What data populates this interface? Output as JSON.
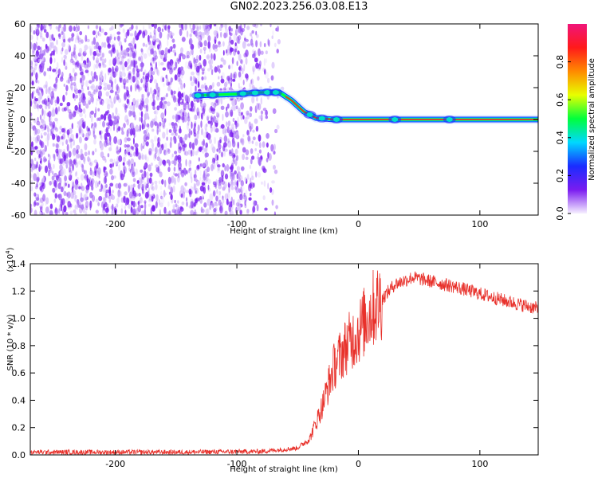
{
  "title": "GN02.2023.256.03.08.E13",
  "colors": {
    "signal": "#e8312b",
    "noise": "#7a1cf0",
    "axis": "#000000"
  },
  "chart_data": [
    {
      "type": "heatmap",
      "xlabel": "Height of straight line (km)",
      "ylabel": "Frequency (Hz)",
      "xlim": [
        -270,
        148
      ],
      "ylim": [
        -60,
        60
      ],
      "xticks": [
        -200,
        -100,
        0,
        100
      ],
      "xtick_labels": [
        "-200",
        "-100",
        "0",
        "100"
      ],
      "yticks": [
        -60,
        -40,
        -20,
        0,
        20,
        40,
        60
      ],
      "ytick_labels": [
        "-60",
        "-40",
        "-20",
        "0",
        "20",
        "40",
        "60"
      ],
      "noise_region_x": [
        -270,
        -60
      ],
      "track": [
        {
          "x": -135,
          "y": 15
        },
        {
          "x": -100,
          "y": 16
        },
        {
          "x": -80,
          "y": 17
        },
        {
          "x": -65,
          "y": 17
        },
        {
          "x": -55,
          "y": 12
        },
        {
          "x": -45,
          "y": 5
        },
        {
          "x": -35,
          "y": 1
        },
        {
          "x": -20,
          "y": 0
        },
        {
          "x": 148,
          "y": 0
        }
      ],
      "colorbar": {
        "label": "Normalized spectral amplitude",
        "range": [
          0,
          1
        ],
        "ticks": [
          0.0,
          0.2,
          0.4,
          0.6,
          0.8
        ],
        "tick_labels": [
          "0.0",
          "0.2",
          "0.4",
          "0.6",
          "0.8"
        ],
        "colormap": [
          "#f6f0ff",
          "#7a1cf0",
          "#1a2cff",
          "#00d8ff",
          "#00ff3c",
          "#e8ff00",
          "#ff8a00",
          "#ff1a1a",
          "#f0157a"
        ]
      }
    },
    {
      "type": "line",
      "xlabel": "Height of straight line (km)",
      "ylabel": "SNR (10 * v/v)",
      "multiplier_label": "(x10",
      "multiplier_exp": "4",
      "multiplier_close": ")",
      "xlim": [
        -270,
        148
      ],
      "ylim": [
        0,
        14000
      ],
      "xticks": [
        -200,
        -100,
        0,
        100
      ],
      "xtick_labels": [
        "-200",
        "-100",
        "0",
        "100"
      ],
      "yticks": [
        0,
        2000,
        4000,
        6000,
        8000,
        10000,
        12000,
        14000
      ],
      "ytick_labels": [
        "0.0",
        "0.2",
        "0.4",
        "0.6",
        "0.8",
        "1.0",
        "1.2",
        "1.4"
      ],
      "series": [
        {
          "envelope": [
            {
              "x": -270,
              "y": 200
            },
            {
              "x": -150,
              "y": 200
            },
            {
              "x": -80,
              "y": 250
            },
            {
              "x": -50,
              "y": 500
            },
            {
              "x": -40,
              "y": 1200
            },
            {
              "x": -30,
              "y": 3500
            },
            {
              "x": -20,
              "y": 6500
            },
            {
              "x": -10,
              "y": 8000
            },
            {
              "x": 0,
              "y": 9000
            },
            {
              "x": 10,
              "y": 10500
            },
            {
              "x": 20,
              "y": 11500
            },
            {
              "x": 30,
              "y": 12500
            },
            {
              "x": 45,
              "y": 13000
            },
            {
              "x": 60,
              "y": 12700
            },
            {
              "x": 80,
              "y": 12300
            },
            {
              "x": 100,
              "y": 11800
            },
            {
              "x": 120,
              "y": 11300
            },
            {
              "x": 148,
              "y": 10700
            }
          ]
        }
      ]
    }
  ]
}
